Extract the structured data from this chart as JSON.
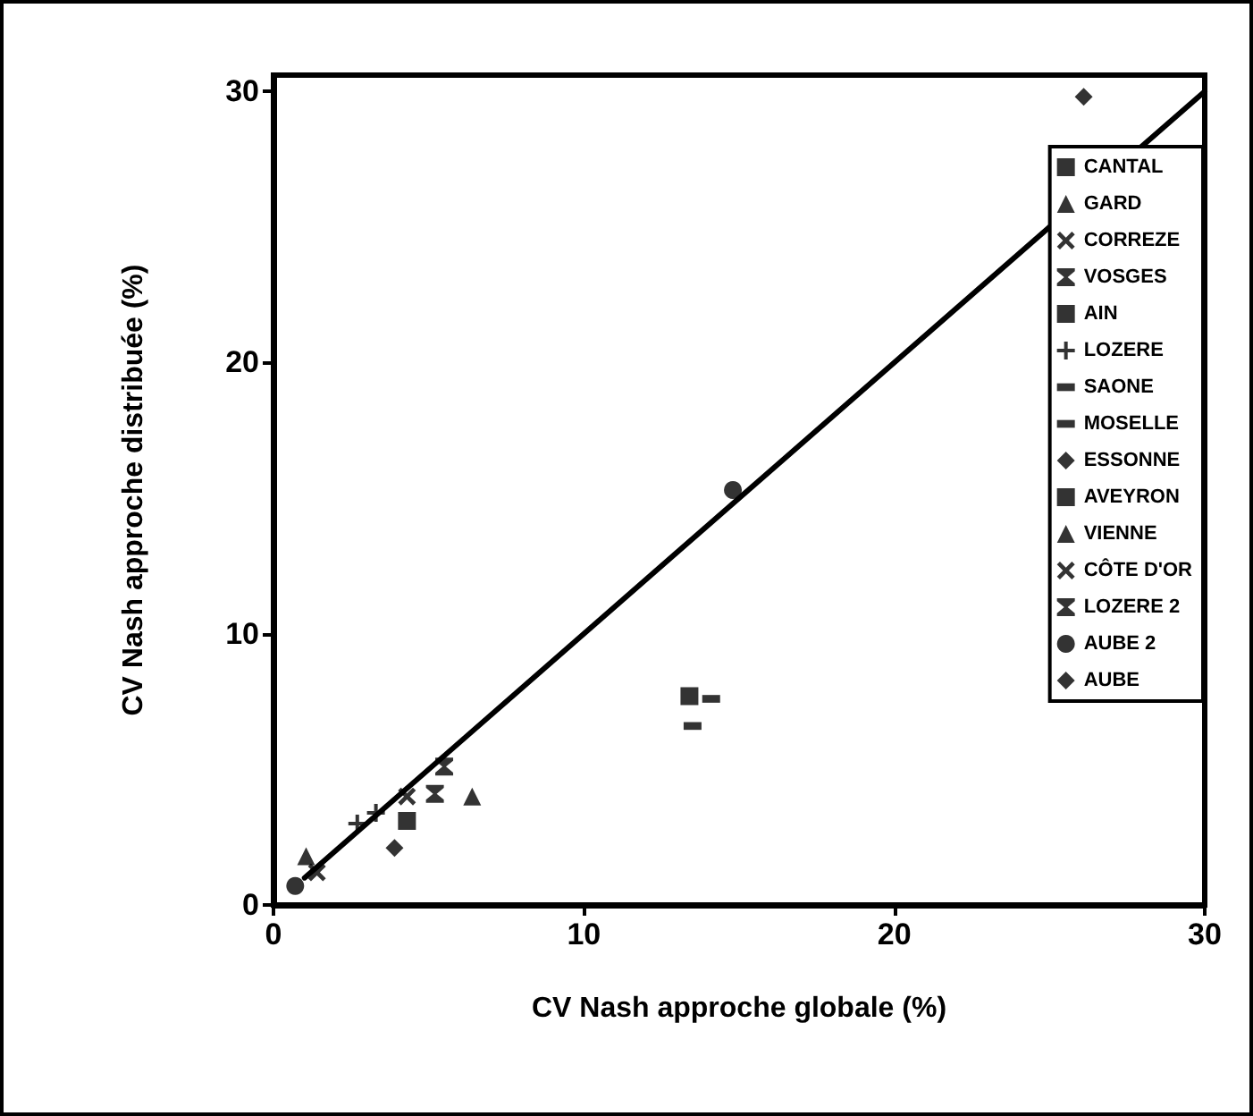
{
  "chart_data": {
    "type": "scatter",
    "xlabel": "CV Nash approche globale (%)",
    "ylabel": "CV Nash approche distribuée (%)",
    "xlim": [
      0,
      30
    ],
    "ylim": [
      0,
      30.6
    ],
    "xticks": [
      0,
      10,
      20,
      30
    ],
    "yticks": [
      0,
      10,
      20,
      30
    ],
    "grid": false,
    "legend": "right",
    "series": [
      {
        "name": "CANTAL",
        "color": "#000000",
        "marker": "square",
        "x": [
          4.3
        ],
        "values": [
          3.1
        ]
      },
      {
        "name": "GARD",
        "color": "#000000",
        "marker": "triangle",
        "x": [
          6.4
        ],
        "values": [
          4.0
        ]
      },
      {
        "name": "CORREZE",
        "color": "#000000",
        "marker": "cross",
        "x": [
          4.3
        ],
        "values": [
          4.0
        ]
      },
      {
        "name": "VOSGES",
        "color": "#000000",
        "marker": "star",
        "x": [
          5.5
        ],
        "values": [
          5.1
        ]
      },
      {
        "name": "AIN",
        "color": "#000000",
        "marker": "square",
        "x": [
          13.4
        ],
        "values": [
          7.7
        ]
      },
      {
        "name": "LOZERE",
        "color": "#000000",
        "marker": "plus",
        "x": [
          2.7,
          3.3
        ],
        "values": [
          3.0,
          3.4
        ]
      },
      {
        "name": "SAONE",
        "color": "#000000",
        "x": [
          14.1
        ],
        "values": [
          7.6
        ]
      },
      {
        "name": "MOSELLE",
        "color": "#000000",
        "x": [
          13.5
        ],
        "values": [
          6.6
        ]
      },
      {
        "name": "ESSONNE",
        "color": "#000000",
        "marker": "diamond",
        "x": [
          3.9
        ],
        "values": [
          2.1
        ]
      },
      {
        "name": "AVEYRON",
        "color": "#000000",
        "marker": "square"
      },
      {
        "name": "VIENNE",
        "color": "#000000",
        "marker": "triangle",
        "x": [
          1.05
        ],
        "values": [
          1.8
        ]
      },
      {
        "name": "CÔTE D'OR",
        "color": "#000000",
        "marker": "cross",
        "x": [
          1.4
        ],
        "values": [
          1.2
        ]
      },
      {
        "name": "LOZERE 2",
        "color": "#000000",
        "marker": "star",
        "x": [
          5.2
        ],
        "values": [
          4.1
        ]
      },
      {
        "name": "AUBE 2",
        "color": "#000000",
        "marker": "circle",
        "x": [
          0.7,
          14.8
        ],
        "values": [
          0.7,
          15.3
        ]
      },
      {
        "name": "AUBE",
        "color": "#000000",
        "marker": "diamond",
        "x": [
          26.1
        ],
        "values": [
          29.8
        ]
      },
      {
        "type": "line",
        "color": "#000000",
        "line_style": "solid",
        "marker": "none",
        "x": [
          1,
          30
        ],
        "values": [
          1,
          30
        ]
      }
    ]
  }
}
